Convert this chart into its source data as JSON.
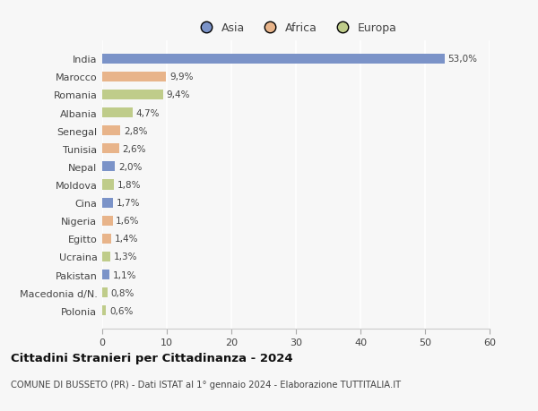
{
  "categories": [
    "India",
    "Marocco",
    "Romania",
    "Albania",
    "Senegal",
    "Tunisia",
    "Nepal",
    "Moldova",
    "Cina",
    "Nigeria",
    "Egitto",
    "Ucraina",
    "Pakistan",
    "Macedonia d/N.",
    "Polonia"
  ],
  "values": [
    53.0,
    9.9,
    9.4,
    4.7,
    2.8,
    2.6,
    2.0,
    1.8,
    1.7,
    1.6,
    1.4,
    1.3,
    1.1,
    0.8,
    0.6
  ],
  "labels": [
    "53,0%",
    "9,9%",
    "9,4%",
    "4,7%",
    "2,8%",
    "2,6%",
    "2,0%",
    "1,8%",
    "1,7%",
    "1,6%",
    "1,4%",
    "1,3%",
    "1,1%",
    "0,8%",
    "0,6%"
  ],
  "continent": [
    "Asia",
    "Africa",
    "Europa",
    "Europa",
    "Africa",
    "Africa",
    "Asia",
    "Europa",
    "Asia",
    "Africa",
    "Africa",
    "Europa",
    "Asia",
    "Europa",
    "Europa"
  ],
  "colors": {
    "Asia": "#7b93c8",
    "Africa": "#e8b48a",
    "Europa": "#bfcc8a"
  },
  "xlim": [
    0,
    60
  ],
  "xticks": [
    0,
    10,
    20,
    30,
    40,
    50,
    60
  ],
  "title": "Cittadini Stranieri per Cittadinanza - 2024",
  "subtitle": "COMUNE DI BUSSETO (PR) - Dati ISTAT al 1° gennaio 2024 - Elaborazione TUTTITALIA.IT",
  "background_color": "#f7f7f7",
  "grid_color": "#ffffff",
  "bar_height": 0.55
}
